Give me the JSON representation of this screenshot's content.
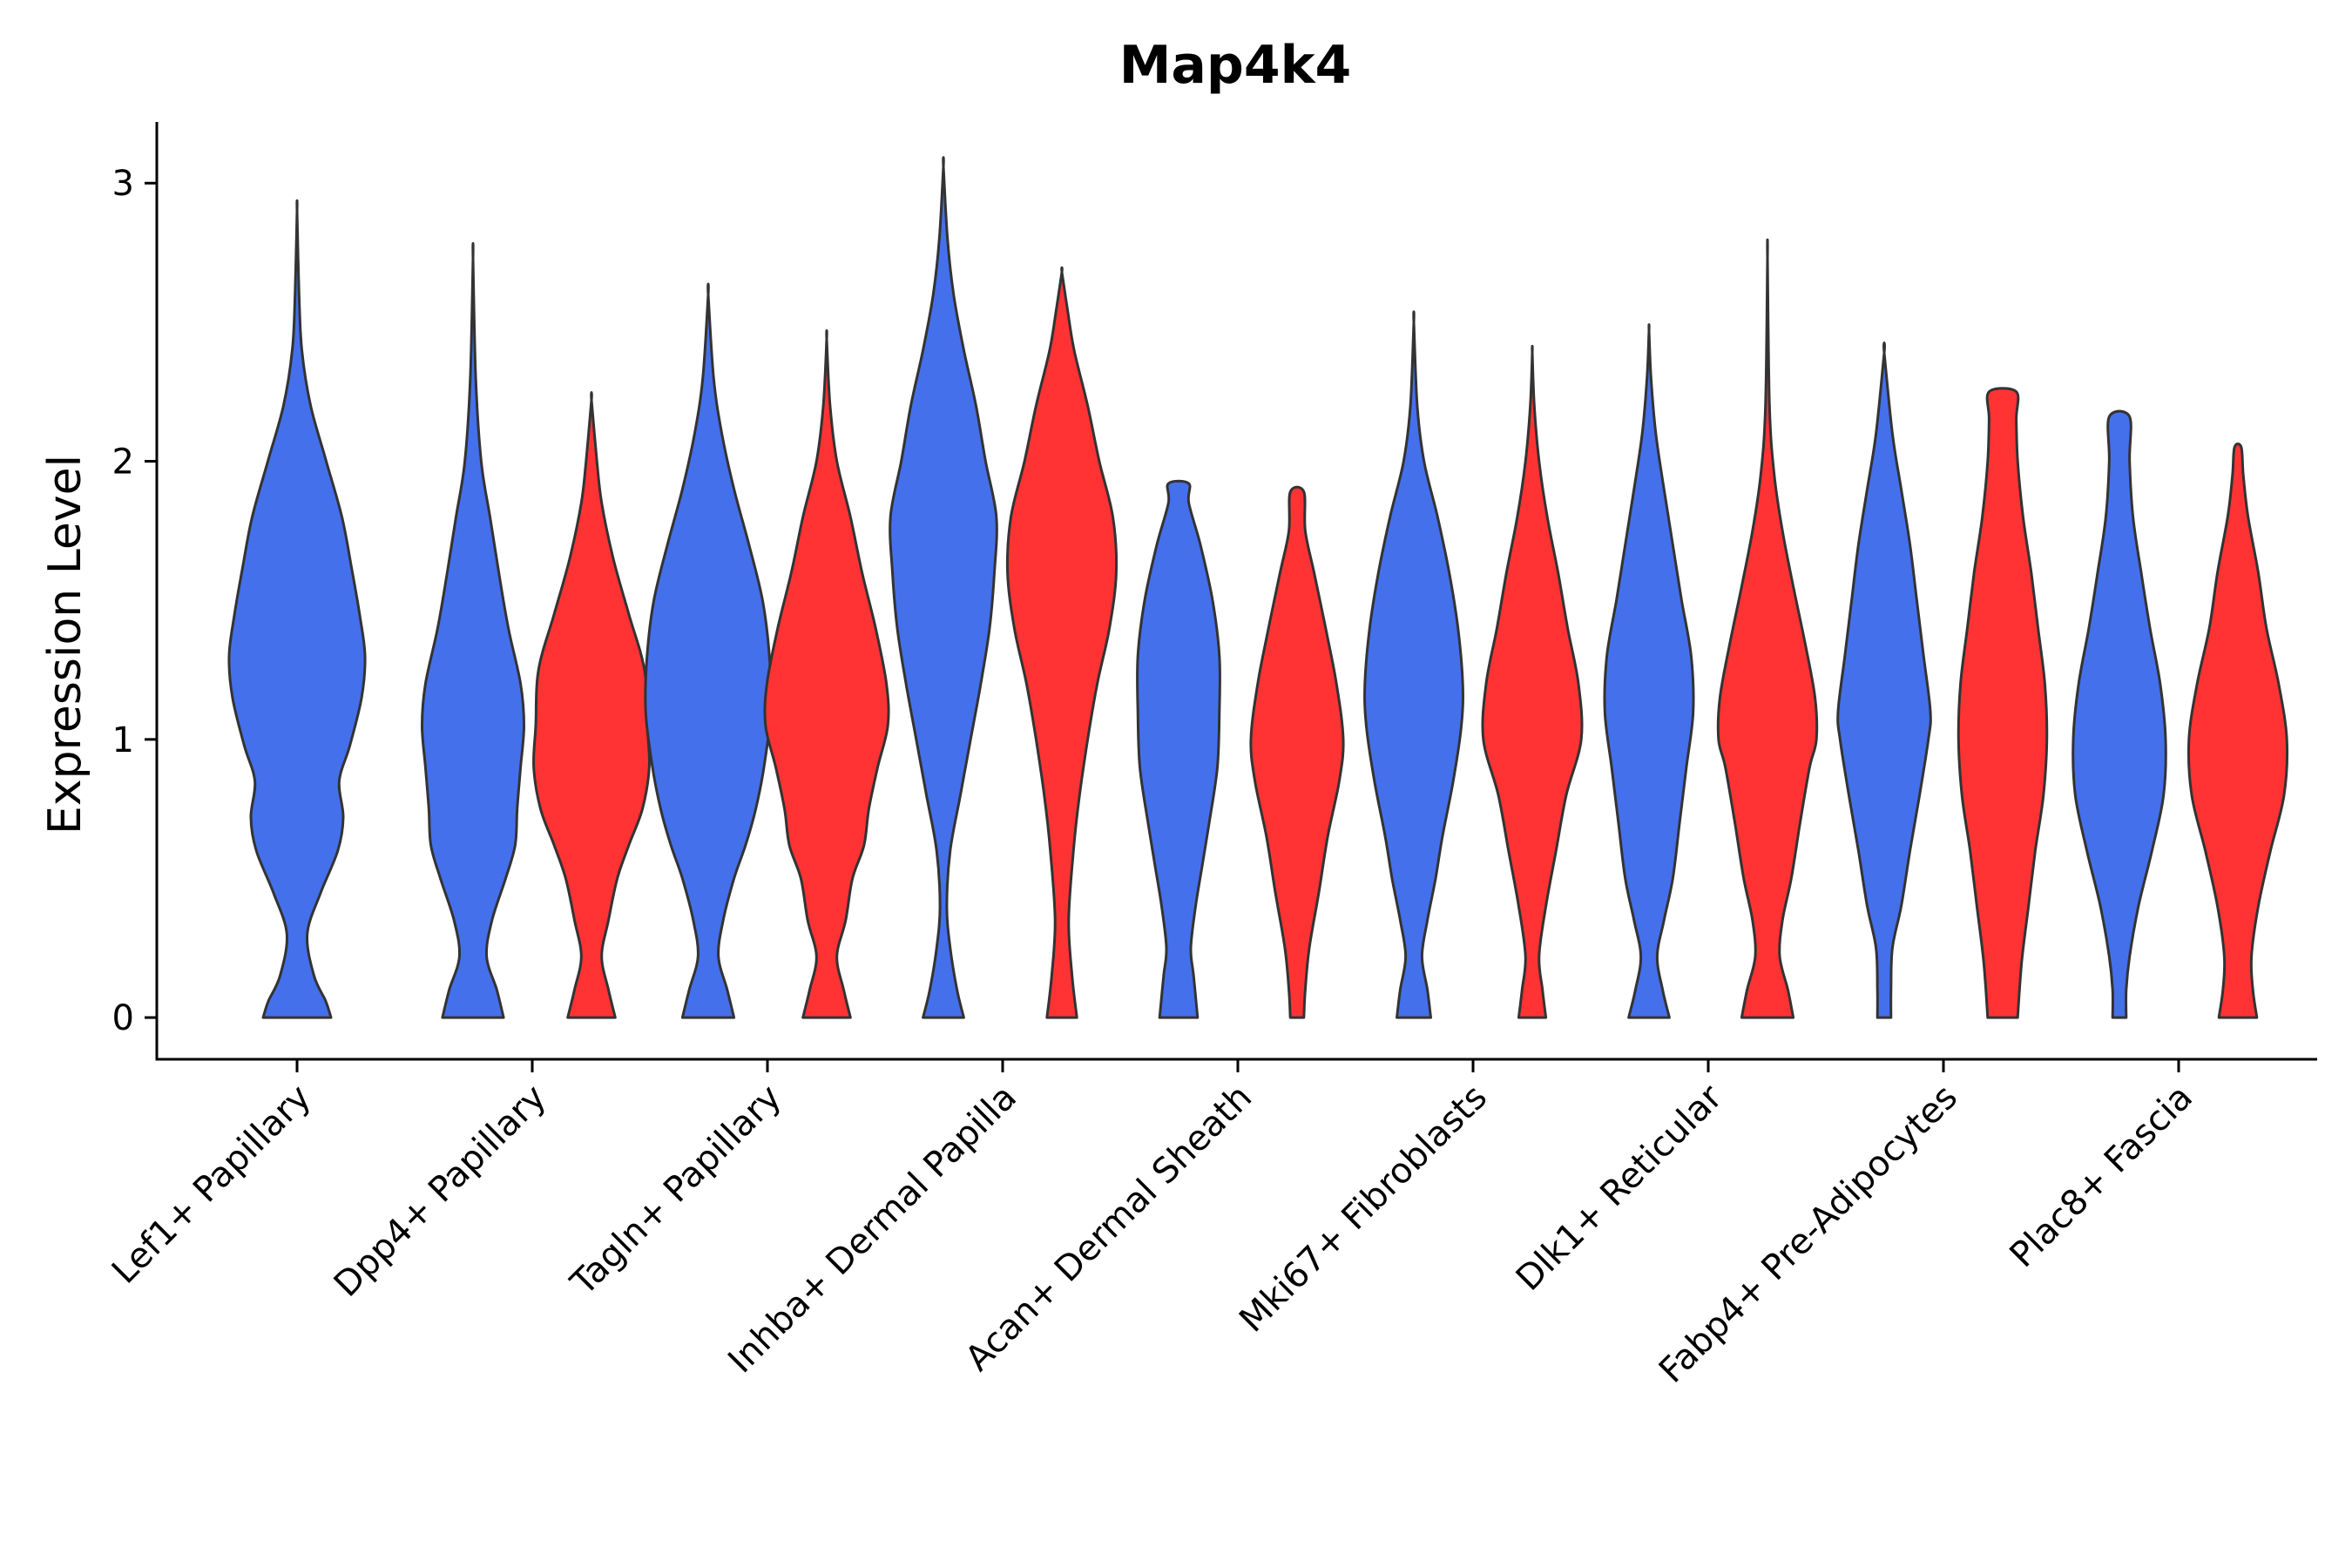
{
  "chart_data": {
    "type": "violin",
    "title": "Map4k4",
    "xlabel": "",
    "ylabel": "Expression Level",
    "ylim": [
      -0.15,
      3.22
    ],
    "yticks": [
      0,
      1,
      2,
      3
    ],
    "categories": [
      "Lef1+ Papillary",
      "Dpp4+ Papillary",
      "Tagln+ Papillary",
      "Inhba+ Dermal Papilla",
      "Acan+ Dermal Sheath",
      "Mki67+ Fibroblasts",
      "Dlk1+ Reticular",
      "Fabp4+ Pre-Adipocytes",
      "Plac8+ Fascia"
    ],
    "series_colors": {
      "group1": "#4470EC",
      "group2": "#FF3333"
    },
    "violins": [
      {
        "category": "Lef1+ Papillary",
        "group": "group1",
        "color": "#4470EC",
        "max": 2.9,
        "profile": [
          [
            0,
            0.5
          ],
          [
            0.06,
            0.42
          ],
          [
            0.15,
            0.25
          ],
          [
            0.3,
            0.15
          ],
          [
            0.45,
            0.35
          ],
          [
            0.6,
            0.6
          ],
          [
            0.72,
            0.68
          ],
          [
            0.85,
            0.62
          ],
          [
            0.98,
            0.78
          ],
          [
            1.15,
            0.95
          ],
          [
            1.3,
            1.0
          ],
          [
            1.45,
            0.92
          ],
          [
            1.62,
            0.8
          ],
          [
            1.8,
            0.66
          ],
          [
            2.0,
            0.43
          ],
          [
            2.2,
            0.2
          ],
          [
            2.4,
            0.07
          ],
          [
            2.6,
            0.03
          ],
          [
            2.9,
            0.0
          ]
        ]
      },
      {
        "category": "Dpp4+ Papillary",
        "group": "group1",
        "color": "#4470EC",
        "max": 2.73,
        "profile": [
          [
            0,
            0.45
          ],
          [
            0.1,
            0.35
          ],
          [
            0.22,
            0.2
          ],
          [
            0.35,
            0.28
          ],
          [
            0.5,
            0.48
          ],
          [
            0.62,
            0.62
          ],
          [
            0.75,
            0.65
          ],
          [
            0.9,
            0.7
          ],
          [
            1.05,
            0.75
          ],
          [
            1.2,
            0.7
          ],
          [
            1.4,
            0.52
          ],
          [
            1.6,
            0.38
          ],
          [
            1.8,
            0.25
          ],
          [
            2.0,
            0.12
          ],
          [
            2.3,
            0.04
          ],
          [
            2.73,
            0.0
          ]
        ]
      },
      {
        "category": "Dpp4+ Papillary",
        "group": "group2",
        "color": "#FF3333",
        "max": 2.22,
        "profile": [
          [
            0,
            0.35
          ],
          [
            0.1,
            0.25
          ],
          [
            0.22,
            0.15
          ],
          [
            0.35,
            0.25
          ],
          [
            0.5,
            0.38
          ],
          [
            0.62,
            0.55
          ],
          [
            0.75,
            0.75
          ],
          [
            0.9,
            0.85
          ],
          [
            1.05,
            0.82
          ],
          [
            1.25,
            0.78
          ],
          [
            1.45,
            0.55
          ],
          [
            1.65,
            0.32
          ],
          [
            1.85,
            0.15
          ],
          [
            2.0,
            0.08
          ],
          [
            2.22,
            0.0
          ]
        ]
      },
      {
        "category": "Tagln+ Papillary",
        "group": "group1",
        "color": "#4470EC",
        "max": 2.6,
        "profile": [
          [
            0,
            0.38
          ],
          [
            0.1,
            0.28
          ],
          [
            0.22,
            0.15
          ],
          [
            0.35,
            0.22
          ],
          [
            0.5,
            0.38
          ],
          [
            0.62,
            0.55
          ],
          [
            0.75,
            0.7
          ],
          [
            0.9,
            0.82
          ],
          [
            1.1,
            0.92
          ],
          [
            1.3,
            0.9
          ],
          [
            1.5,
            0.8
          ],
          [
            1.7,
            0.6
          ],
          [
            1.9,
            0.38
          ],
          [
            2.1,
            0.2
          ],
          [
            2.3,
            0.08
          ],
          [
            2.6,
            0.0
          ]
        ]
      },
      {
        "category": "Tagln+ Papillary",
        "group": "group2",
        "color": "#FF3333",
        "max": 2.44,
        "profile": [
          [
            0,
            0.35
          ],
          [
            0.1,
            0.25
          ],
          [
            0.22,
            0.15
          ],
          [
            0.35,
            0.28
          ],
          [
            0.5,
            0.38
          ],
          [
            0.62,
            0.55
          ],
          [
            0.75,
            0.62
          ],
          [
            0.9,
            0.75
          ],
          [
            1.05,
            0.9
          ],
          [
            1.2,
            0.88
          ],
          [
            1.4,
            0.72
          ],
          [
            1.6,
            0.52
          ],
          [
            1.8,
            0.35
          ],
          [
            2.0,
            0.15
          ],
          [
            2.2,
            0.05
          ],
          [
            2.44,
            0.0
          ]
        ]
      },
      {
        "category": "Inhba+ Dermal Papilla",
        "group": "group1",
        "color": "#4470EC",
        "max": 3.06,
        "profile": [
          [
            0,
            0.3
          ],
          [
            0.1,
            0.2
          ],
          [
            0.25,
            0.1
          ],
          [
            0.4,
            0.05
          ],
          [
            0.6,
            0.1
          ],
          [
            0.8,
            0.25
          ],
          [
            1.0,
            0.4
          ],
          [
            1.2,
            0.55
          ],
          [
            1.4,
            0.68
          ],
          [
            1.6,
            0.75
          ],
          [
            1.8,
            0.78
          ],
          [
            2.0,
            0.62
          ],
          [
            2.2,
            0.48
          ],
          [
            2.4,
            0.3
          ],
          [
            2.6,
            0.15
          ],
          [
            2.8,
            0.06
          ],
          [
            3.06,
            0.0
          ]
        ]
      },
      {
        "category": "Inhba+ Dermal Papilla",
        "group": "group2",
        "color": "#FF3333",
        "max": 2.68,
        "profile": [
          [
            0,
            0.22
          ],
          [
            0.15,
            0.15
          ],
          [
            0.35,
            0.1
          ],
          [
            0.6,
            0.17
          ],
          [
            0.8,
            0.26
          ],
          [
            1.0,
            0.38
          ],
          [
            1.2,
            0.52
          ],
          [
            1.4,
            0.7
          ],
          [
            1.6,
            0.8
          ],
          [
            1.8,
            0.75
          ],
          [
            2.0,
            0.55
          ],
          [
            2.2,
            0.38
          ],
          [
            2.4,
            0.18
          ],
          [
            2.55,
            0.08
          ],
          [
            2.68,
            0.0
          ]
        ]
      },
      {
        "category": "Acan+ Dermal Sheath",
        "group": "group1",
        "color": "#4470EC",
        "max": 1.92,
        "profile": [
          [
            0,
            0.28
          ],
          [
            0.15,
            0.22
          ],
          [
            0.25,
            0.18
          ],
          [
            0.4,
            0.25
          ],
          [
            0.55,
            0.35
          ],
          [
            0.7,
            0.45
          ],
          [
            0.9,
            0.57
          ],
          [
            1.1,
            0.6
          ],
          [
            1.3,
            0.6
          ],
          [
            1.5,
            0.5
          ],
          [
            1.7,
            0.32
          ],
          [
            1.85,
            0.15
          ],
          [
            1.92,
            0.15
          ]
        ]
      },
      {
        "category": "Acan+ Dermal Sheath",
        "group": "group2",
        "color": "#FF3333",
        "max": 1.89,
        "profile": [
          [
            0,
            0.1
          ],
          [
            0.1,
            0.12
          ],
          [
            0.25,
            0.18
          ],
          [
            0.45,
            0.32
          ],
          [
            0.65,
            0.45
          ],
          [
            0.85,
            0.62
          ],
          [
            1.0,
            0.68
          ],
          [
            1.2,
            0.58
          ],
          [
            1.4,
            0.42
          ],
          [
            1.6,
            0.25
          ],
          [
            1.75,
            0.12
          ],
          [
            1.89,
            0.1
          ]
        ]
      },
      {
        "category": "Mki67+ Fibroblasts",
        "group": "group1",
        "color": "#4470EC",
        "max": 2.5,
        "profile": [
          [
            0,
            0.25
          ],
          [
            0.1,
            0.2
          ],
          [
            0.22,
            0.12
          ],
          [
            0.35,
            0.2
          ],
          [
            0.5,
            0.32
          ],
          [
            0.65,
            0.42
          ],
          [
            0.85,
            0.58
          ],
          [
            1.05,
            0.7
          ],
          [
            1.2,
            0.72
          ],
          [
            1.4,
            0.65
          ],
          [
            1.6,
            0.52
          ],
          [
            1.8,
            0.35
          ],
          [
            2.0,
            0.15
          ],
          [
            2.2,
            0.05
          ],
          [
            2.5,
            0.0
          ]
        ]
      },
      {
        "category": "Mki67+ Fibroblasts",
        "group": "group2",
        "color": "#FF3333",
        "max": 2.39,
        "profile": [
          [
            0,
            0.2
          ],
          [
            0.1,
            0.15
          ],
          [
            0.22,
            0.1
          ],
          [
            0.4,
            0.2
          ],
          [
            0.6,
            0.35
          ],
          [
            0.8,
            0.5
          ],
          [
            1.0,
            0.72
          ],
          [
            1.2,
            0.68
          ],
          [
            1.4,
            0.52
          ],
          [
            1.6,
            0.38
          ],
          [
            1.8,
            0.22
          ],
          [
            2.0,
            0.1
          ],
          [
            2.2,
            0.03
          ],
          [
            2.39,
            0.0
          ]
        ]
      },
      {
        "category": "Dlk1+ Reticular",
        "group": "group1",
        "color": "#4470EC",
        "max": 2.47,
        "profile": [
          [
            0,
            0.3
          ],
          [
            0.1,
            0.2
          ],
          [
            0.22,
            0.12
          ],
          [
            0.35,
            0.22
          ],
          [
            0.5,
            0.35
          ],
          [
            0.7,
            0.45
          ],
          [
            0.9,
            0.55
          ],
          [
            1.1,
            0.65
          ],
          [
            1.3,
            0.62
          ],
          [
            1.5,
            0.48
          ],
          [
            1.7,
            0.35
          ],
          [
            1.9,
            0.22
          ],
          [
            2.1,
            0.1
          ],
          [
            2.3,
            0.03
          ],
          [
            2.47,
            0.0
          ]
        ]
      },
      {
        "category": "Dlk1+ Reticular",
        "group": "group2",
        "color": "#FF3333",
        "max": 2.73,
        "profile": [
          [
            0,
            0.38
          ],
          [
            0.1,
            0.3
          ],
          [
            0.22,
            0.18
          ],
          [
            0.35,
            0.22
          ],
          [
            0.5,
            0.35
          ],
          [
            0.7,
            0.48
          ],
          [
            0.9,
            0.62
          ],
          [
            1.0,
            0.72
          ],
          [
            1.15,
            0.7
          ],
          [
            1.35,
            0.55
          ],
          [
            1.55,
            0.38
          ],
          [
            1.75,
            0.22
          ],
          [
            1.95,
            0.1
          ],
          [
            2.2,
            0.03
          ],
          [
            2.73,
            0.0
          ]
        ]
      },
      {
        "category": "Fabp4+ Pre-Adipocytes",
        "group": "group1",
        "color": "#4470EC",
        "max": 2.39,
        "profile": [
          [
            0,
            0.1
          ],
          [
            0.1,
            0.1
          ],
          [
            0.25,
            0.12
          ],
          [
            0.4,
            0.25
          ],
          [
            0.6,
            0.38
          ],
          [
            0.8,
            0.52
          ],
          [
            1.0,
            0.65
          ],
          [
            1.1,
            0.68
          ],
          [
            1.3,
            0.58
          ],
          [
            1.5,
            0.48
          ],
          [
            1.7,
            0.38
          ],
          [
            1.9,
            0.25
          ],
          [
            2.1,
            0.12
          ],
          [
            2.39,
            0.0
          ]
        ]
      },
      {
        "category": "Fabp4+ Pre-Adipocytes",
        "group": "group2",
        "color": "#FF3333",
        "max": 2.25,
        "profile": [
          [
            0,
            0.22
          ],
          [
            0.2,
            0.28
          ],
          [
            0.4,
            0.38
          ],
          [
            0.6,
            0.48
          ],
          [
            0.8,
            0.6
          ],
          [
            1.0,
            0.65
          ],
          [
            1.2,
            0.62
          ],
          [
            1.4,
            0.52
          ],
          [
            1.6,
            0.42
          ],
          [
            1.8,
            0.3
          ],
          [
            2.0,
            0.22
          ],
          [
            2.15,
            0.2
          ],
          [
            2.25,
            0.2
          ]
        ]
      },
      {
        "category": "Plac8+ Fascia",
        "group": "group1",
        "color": "#4470EC",
        "max": 2.16,
        "profile": [
          [
            0,
            0.1
          ],
          [
            0.1,
            0.1
          ],
          [
            0.22,
            0.15
          ],
          [
            0.4,
            0.28
          ],
          [
            0.6,
            0.48
          ],
          [
            0.8,
            0.65
          ],
          [
            1.0,
            0.68
          ],
          [
            1.2,
            0.6
          ],
          [
            1.4,
            0.45
          ],
          [
            1.6,
            0.32
          ],
          [
            1.8,
            0.2
          ],
          [
            2.0,
            0.15
          ],
          [
            2.16,
            0.15
          ]
        ]
      },
      {
        "category": "Plac8+ Fascia",
        "group": "group2",
        "color": "#FF3333",
        "max": 2.05,
        "profile": [
          [
            0,
            0.28
          ],
          [
            0.1,
            0.22
          ],
          [
            0.22,
            0.2
          ],
          [
            0.4,
            0.3
          ],
          [
            0.6,
            0.48
          ],
          [
            0.8,
            0.68
          ],
          [
            1.0,
            0.72
          ],
          [
            1.2,
            0.6
          ],
          [
            1.4,
            0.42
          ],
          [
            1.6,
            0.3
          ],
          [
            1.8,
            0.15
          ],
          [
            1.95,
            0.08
          ],
          [
            2.05,
            0.05
          ]
        ]
      }
    ]
  }
}
